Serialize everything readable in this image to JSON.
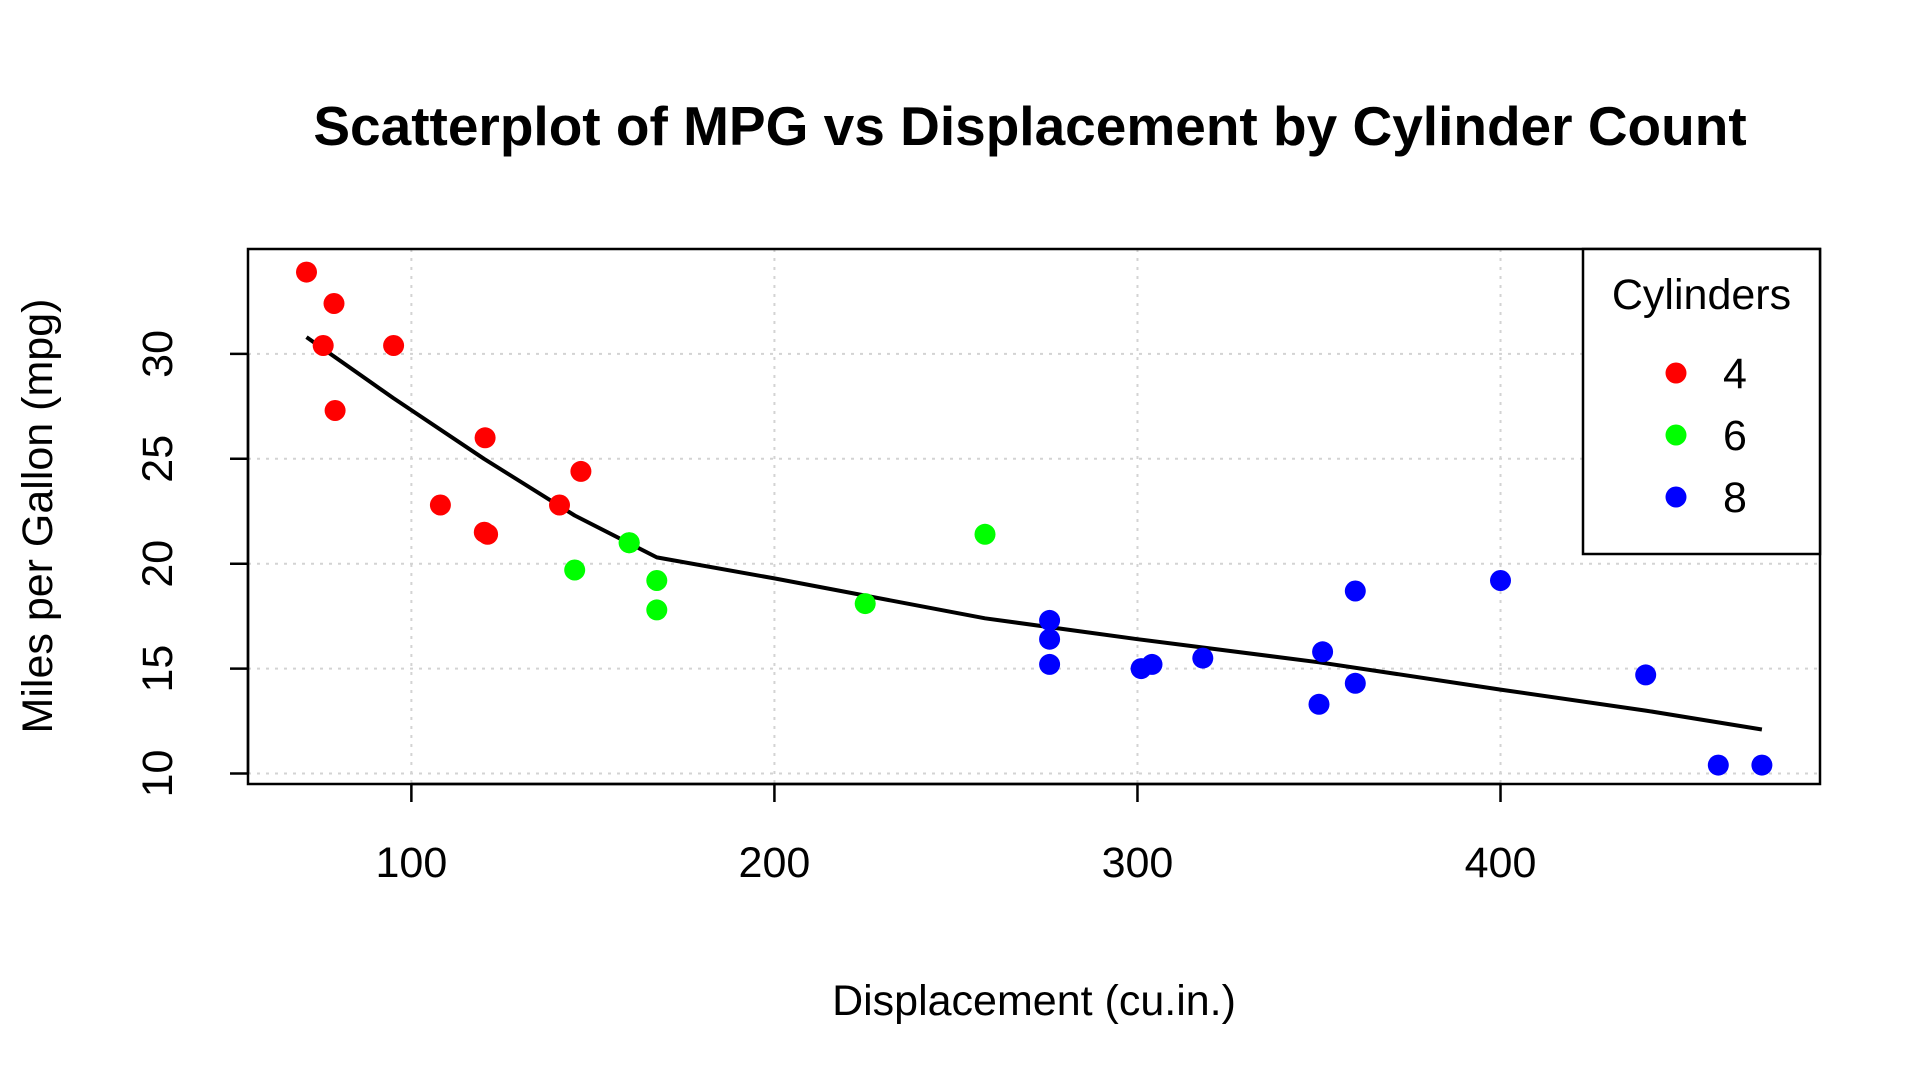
{
  "chart_data": {
    "type": "scatter",
    "title": "Scatterplot of MPG vs Displacement by Cylinder Count",
    "xlabel": "Displacement (cu.in.)",
    "ylabel": "Miles per Gallon (mpg)",
    "xlim": [
      55,
      488
    ],
    "ylim": [
      9.5,
      35
    ],
    "xticks": [
      100,
      200,
      300,
      400
    ],
    "yticks": [
      10,
      15,
      20,
      25,
      30
    ],
    "grid": true,
    "legend": {
      "title": "Cylinders",
      "position": "top-right"
    },
    "series": [
      {
        "name": "4",
        "color": "#ff0000",
        "points": [
          [
            71.1,
            33.9
          ],
          [
            75.7,
            30.4
          ],
          [
            78.7,
            32.4
          ],
          [
            79.0,
            27.3
          ],
          [
            95.1,
            30.4
          ],
          [
            108.0,
            22.8
          ],
          [
            120.1,
            21.5
          ],
          [
            120.3,
            26.0
          ],
          [
            121.0,
            21.4
          ],
          [
            140.8,
            22.8
          ],
          [
            146.7,
            24.4
          ]
        ]
      },
      {
        "name": "6",
        "color": "#00ff00",
        "points": [
          [
            145.0,
            19.7
          ],
          [
            160.0,
            21.0
          ],
          [
            160.0,
            21.0
          ],
          [
            167.6,
            19.2
          ],
          [
            167.6,
            17.8
          ],
          [
            225.0,
            18.1
          ],
          [
            258.0,
            21.4
          ]
        ]
      },
      {
        "name": "8",
        "color": "#0000ff",
        "points": [
          [
            275.8,
            16.4
          ],
          [
            275.8,
            17.3
          ],
          [
            275.8,
            15.2
          ],
          [
            301.0,
            15.0
          ],
          [
            304.0,
            15.2
          ],
          [
            318.0,
            15.5
          ],
          [
            350.0,
            13.3
          ],
          [
            351.0,
            15.8
          ],
          [
            360.0,
            18.7
          ],
          [
            360.0,
            14.3
          ],
          [
            400.0,
            19.2
          ],
          [
            440.0,
            14.7
          ],
          [
            460.0,
            10.4
          ],
          [
            472.0,
            10.4
          ]
        ]
      }
    ],
    "trend_line": {
      "color": "#000000",
      "points": [
        [
          71.1,
          30.8
        ],
        [
          95,
          27.9
        ],
        [
          120,
          25.0
        ],
        [
          145,
          22.3
        ],
        [
          167.6,
          20.3
        ],
        [
          200,
          19.3
        ],
        [
          258,
          17.4
        ],
        [
          300,
          16.4
        ],
        [
          350,
          15.3
        ],
        [
          400,
          14.0
        ],
        [
          440,
          13.0
        ],
        [
          472,
          12.1
        ]
      ]
    }
  }
}
